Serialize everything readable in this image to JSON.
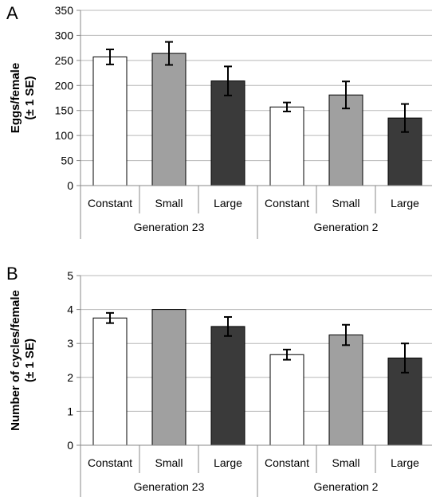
{
  "chart_data": [
    {
      "panel": "A",
      "type": "bar",
      "ylabel_lines": [
        "Eggs/female",
        "(± 1 SE)"
      ],
      "ylim": [
        0,
        350
      ],
      "yticks": [
        0,
        50,
        100,
        150,
        200,
        250,
        300,
        350
      ],
      "grid": true,
      "groups": [
        {
          "label": "Generation 23",
          "categories": [
            "Constant",
            "Small",
            "Large"
          ]
        },
        {
          "label": "Generation 2",
          "categories": [
            "Constant",
            "Small",
            "Large"
          ]
        }
      ],
      "values": [
        257,
        264,
        209,
        157,
        181,
        135
      ],
      "errors": [
        15,
        23,
        29,
        9,
        27,
        28
      ],
      "colors": [
        "#ffffff",
        "#a0a0a0",
        "#3a3a3a",
        "#ffffff",
        "#a0a0a0",
        "#3a3a3a"
      ]
    },
    {
      "panel": "B",
      "type": "bar",
      "ylabel_lines": [
        "Number of cycles/female",
        "(± 1 SE)"
      ],
      "ylim": [
        0,
        5
      ],
      "yticks": [
        0,
        1,
        2,
        3,
        4,
        5
      ],
      "grid": true,
      "groups": [
        {
          "label": "Generation 23",
          "categories": [
            "Constant",
            "Small",
            "Large"
          ]
        },
        {
          "label": "Generation 2",
          "categories": [
            "Constant",
            "Small",
            "Large"
          ]
        }
      ],
      "values": [
        3.75,
        4.0,
        3.5,
        2.67,
        3.25,
        2.57
      ],
      "errors": [
        0.15,
        0,
        0.28,
        0.15,
        0.3,
        0.43
      ],
      "colors": [
        "#ffffff",
        "#a0a0a0",
        "#3a3a3a",
        "#ffffff",
        "#a0a0a0",
        "#3a3a3a"
      ]
    }
  ]
}
